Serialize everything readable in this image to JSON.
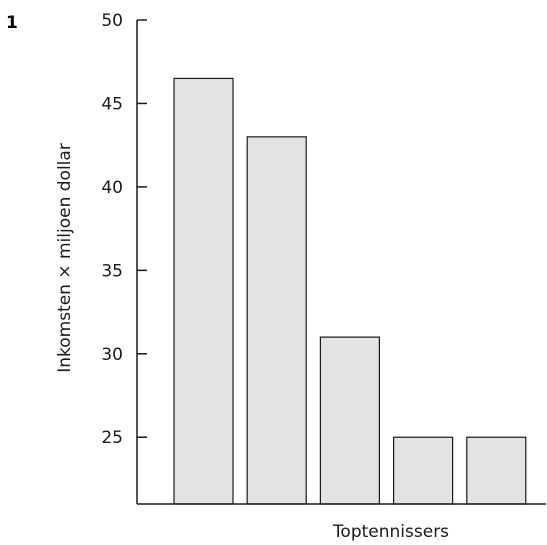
{
  "figure_number": "1",
  "chart_data": {
    "type": "bar",
    "categories": [
      "",
      "",
      "",
      "",
      ""
    ],
    "values": [
      46.5,
      43,
      31,
      25,
      25
    ],
    "title": "",
    "xlabel": "Toptennissers",
    "ylabel": "Inkomsten × miljoen dollar",
    "ylim": [
      21,
      50
    ],
    "yticks": [
      25,
      30,
      35,
      40,
      45,
      50
    ],
    "grid": false,
    "legend": "none",
    "colors": {
      "bar_fill": "#e3e3e3",
      "bar_stroke": "#1a1a1a",
      "axis": "#1a1a1a"
    }
  }
}
